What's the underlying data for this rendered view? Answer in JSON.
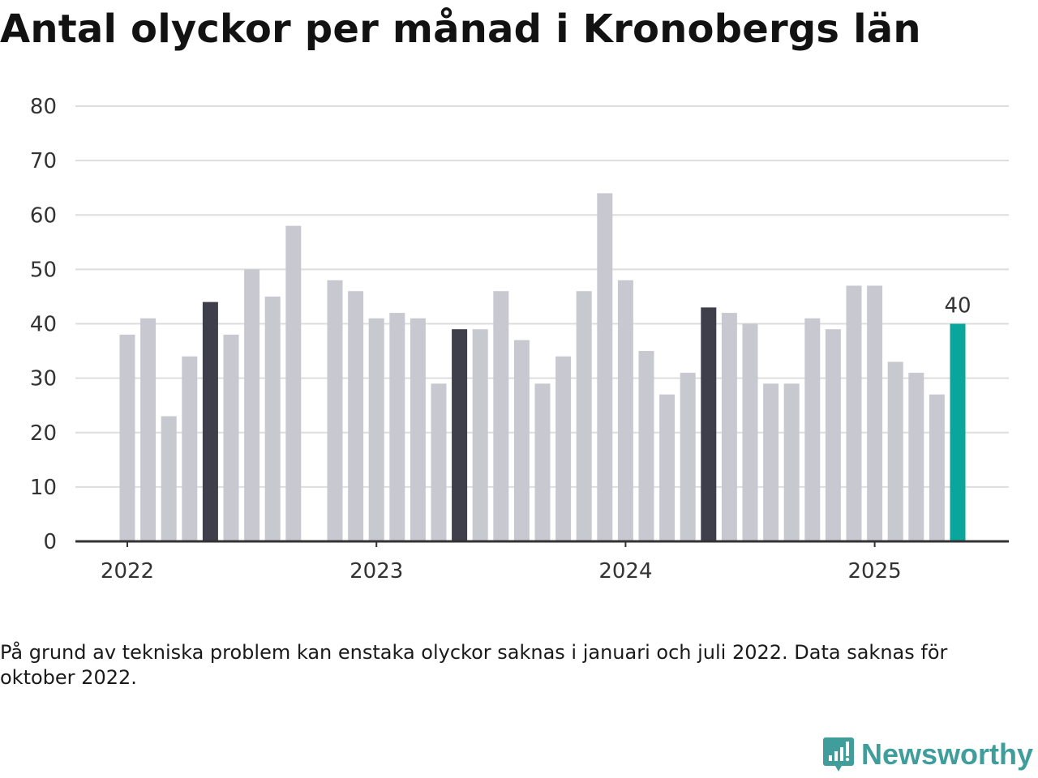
{
  "title": "Antal olyckor per månad i Kronobergs län",
  "note": "På grund av tekniska problem kan enstaka olyckor saknas i januari och juli 2022. Data saknas för oktober 2022.",
  "brand": {
    "name": "Newsworthy",
    "icon": "newsworthy-logo-icon"
  },
  "colors": {
    "bar": "#c8c8d0",
    "highlight": "#3f3f4b",
    "latest": "#0aa69c",
    "grid": "#dddddd",
    "axis": "#333333"
  },
  "chart_data": {
    "type": "bar",
    "title": "Antal olyckor per månad i Kronobergs län",
    "xlabel": "",
    "ylabel": "",
    "ylim": [
      0,
      80
    ],
    "yticks": [
      0,
      10,
      20,
      30,
      40,
      50,
      60,
      70,
      80
    ],
    "xticks": [
      "2022",
      "2023",
      "2024",
      "2025"
    ],
    "grid": true,
    "categories": [
      "2022-01",
      "2022-02",
      "2022-03",
      "2022-04",
      "2022-05",
      "2022-06",
      "2022-07",
      "2022-08",
      "2022-09",
      "2022-10",
      "2022-11",
      "2022-12",
      "2023-01",
      "2023-02",
      "2023-03",
      "2023-04",
      "2023-05",
      "2023-06",
      "2023-07",
      "2023-08",
      "2023-09",
      "2023-10",
      "2023-11",
      "2023-12",
      "2024-01",
      "2024-02",
      "2024-03",
      "2024-04",
      "2024-05",
      "2024-06",
      "2024-07",
      "2024-08",
      "2024-09",
      "2024-10",
      "2024-11",
      "2024-12",
      "2025-01",
      "2025-02",
      "2025-03",
      "2025-04",
      "2025-05"
    ],
    "values": [
      38,
      41,
      23,
      34,
      44,
      38,
      50,
      45,
      58,
      null,
      48,
      46,
      41,
      42,
      41,
      29,
      39,
      39,
      46,
      37,
      29,
      34,
      46,
      64,
      48,
      35,
      27,
      31,
      43,
      42,
      40,
      29,
      29,
      41,
      39,
      47,
      47,
      33,
      31,
      27,
      40
    ],
    "highlighted_categories": [
      "2022-05",
      "2023-05",
      "2024-05"
    ],
    "latest_category": "2025-05",
    "data_labels": [
      {
        "category": "2025-05",
        "text": "40"
      }
    ]
  }
}
